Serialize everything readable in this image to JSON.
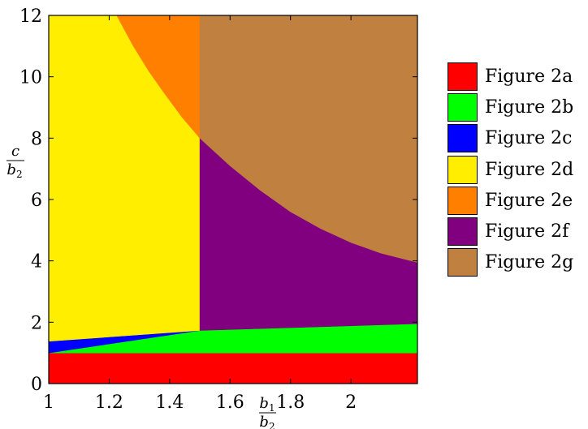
{
  "chart_data": {
    "type": "area",
    "xlabel": {
      "num": "b",
      "num_sub": "1",
      "den": "b",
      "den_sub": "2"
    },
    "ylabel": {
      "num": "c",
      "den": "b",
      "den_sub": "2"
    },
    "xlim": [
      1,
      2.22
    ],
    "ylim": [
      0,
      12
    ],
    "x_ticks": [
      {
        "value": 1,
        "label": "1"
      },
      {
        "value": 1.2,
        "label": "1.2"
      },
      {
        "value": 1.4,
        "label": "1.4"
      },
      {
        "value": 1.6,
        "label": "1.6"
      },
      {
        "value": 1.8,
        "label": "1.8"
      },
      {
        "value": 2,
        "label": "2"
      }
    ],
    "y_ticks": [
      {
        "value": 0,
        "label": "0"
      },
      {
        "value": 2,
        "label": "2"
      },
      {
        "value": 4,
        "label": "4"
      },
      {
        "value": 6,
        "label": "6"
      },
      {
        "value": 8,
        "label": "8"
      },
      {
        "value": 10,
        "label": "10"
      },
      {
        "value": 12,
        "label": "12"
      }
    ],
    "grid": false,
    "legend_position": "right",
    "series": [
      {
        "name": "Figure 2a",
        "color": "#ff0000",
        "region": [
          [
            1,
            0
          ],
          [
            2.22,
            0
          ],
          [
            2.22,
            1
          ],
          [
            1,
            1
          ]
        ]
      },
      {
        "name": "Figure 2b",
        "color": "#00ff00",
        "region": [
          [
            1,
            1
          ],
          [
            2.22,
            1
          ],
          [
            2.22,
            1.95
          ],
          [
            1.5,
            1.73
          ]
        ]
      },
      {
        "name": "Figure 2c",
        "color": "#0000ff",
        "region": [
          [
            1,
            1
          ],
          [
            1.5,
            1.73
          ],
          [
            1,
            1.38
          ]
        ]
      },
      {
        "name": "Figure 2d",
        "color": "#ffee00",
        "region": [
          [
            1,
            1.38
          ],
          [
            1.5,
            1.73
          ],
          [
            1.5,
            8
          ],
          [
            1.44,
            8.7
          ],
          [
            1.38,
            9.5
          ],
          [
            1.33,
            10.2
          ],
          [
            1.28,
            11
          ],
          [
            1.225,
            12
          ],
          [
            1,
            12
          ]
        ]
      },
      {
        "name": "Figure 2e",
        "color": "#ff8000",
        "region": [
          [
            1.225,
            12
          ],
          [
            1.28,
            11
          ],
          [
            1.33,
            10.2
          ],
          [
            1.38,
            9.5
          ],
          [
            1.44,
            8.7
          ],
          [
            1.5,
            8
          ],
          [
            1.5,
            12
          ]
        ]
      },
      {
        "name": "Figure 2f",
        "color": "#800080",
        "region": [
          [
            1.5,
            1.73
          ],
          [
            2.22,
            1.95
          ],
          [
            2.22,
            3.95
          ],
          [
            2.1,
            4.25
          ],
          [
            2.0,
            4.6
          ],
          [
            1.9,
            5.05
          ],
          [
            1.8,
            5.6
          ],
          [
            1.7,
            6.3
          ],
          [
            1.6,
            7.1
          ],
          [
            1.5,
            8
          ]
        ]
      },
      {
        "name": "Figure 2g",
        "color": "#c08040",
        "region": [
          [
            1.5,
            8
          ],
          [
            1.6,
            7.1
          ],
          [
            1.7,
            6.3
          ],
          [
            1.8,
            5.6
          ],
          [
            1.9,
            5.05
          ],
          [
            2.0,
            4.6
          ],
          [
            2.1,
            4.25
          ],
          [
            2.22,
            3.95
          ],
          [
            2.22,
            12
          ],
          [
            1.5,
            12
          ]
        ]
      }
    ]
  }
}
